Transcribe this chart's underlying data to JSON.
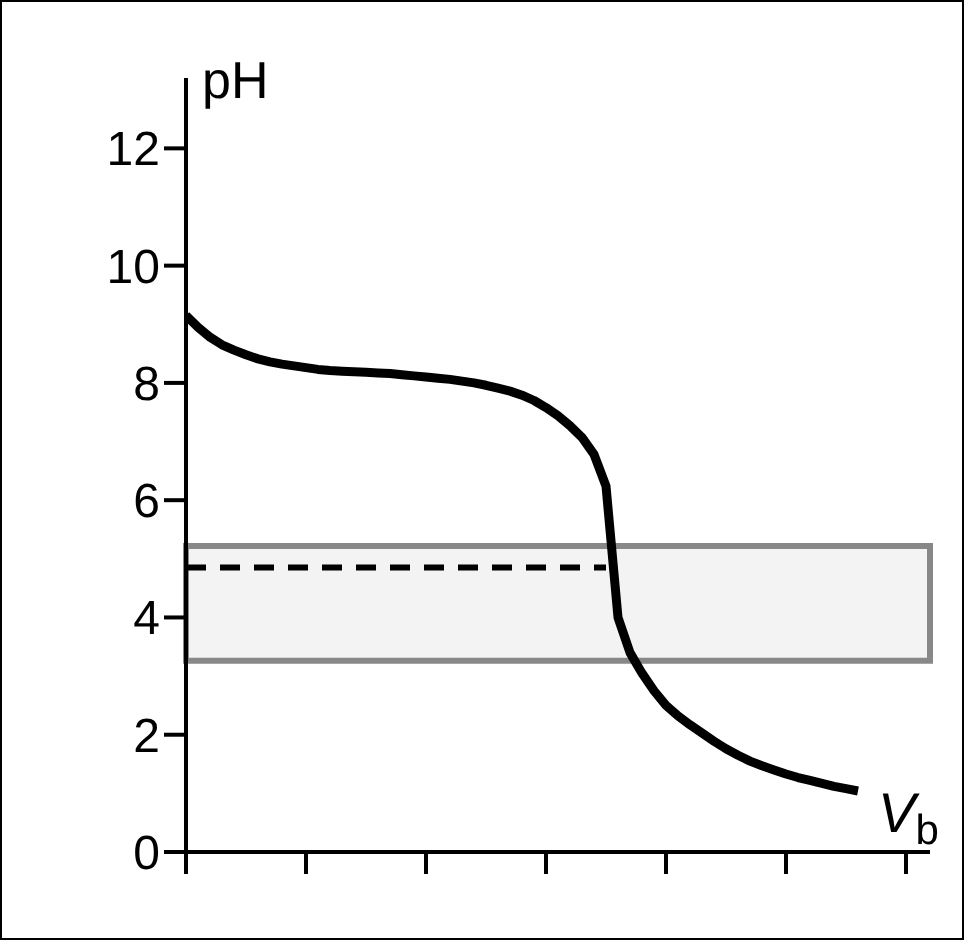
{
  "chart_data": {
    "type": "line",
    "xlabel": "V$_{b}$",
    "ylabel": "pH",
    "categories": [
      null,
      null,
      null,
      null,
      null,
      null,
      null,
      null,
      null,
      null,
      null,
      null,
      null,
      null,
      null,
      null,
      null,
      null,
      null,
      null,
      null,
      null,
      null,
      null,
      null,
      null,
      null,
      null,
      null,
      null,
      null,
      null,
      null,
      null,
      null,
      null,
      null,
      null,
      null,
      null,
      null,
      null,
      null,
      null,
      null,
      null,
      null,
      null,
      null,
      null,
      null,
      null,
      null,
      null,
      null,
      null,
      null,
      null,
      null,
      null,
      null,
      null,
      null
    ],
    "ylim": [
      0,
      13.2
    ],
    "yticks": [
      {
        "value": 0,
        "label": "0"
      },
      2,
      4,
      6,
      8,
      10,
      12
    ],
    "series": [
      {
        "color": "#000000",
        "line_style": "solid",
        "values": [
          9.15,
          8.95,
          8.78,
          8.65,
          8.56,
          8.48,
          8.41,
          8.36,
          8.32,
          8.29,
          8.26,
          8.23,
          8.21,
          8.2,
          8.19,
          8.18,
          8.17,
          8.16,
          8.14,
          8.12,
          8.1,
          8.08,
          8.06,
          8.03,
          8.0,
          7.96,
          7.91,
          7.86,
          7.79,
          7.7,
          7.58,
          7.44,
          7.27,
          7.07,
          6.78,
          6.24,
          4.0,
          3.4,
          3.05,
          2.75,
          2.5,
          2.32,
          2.17,
          2.03,
          1.89,
          1.76,
          1.65,
          1.55,
          1.47,
          1.4,
          1.33,
          1.27,
          1.22,
          1.17,
          1.12,
          1.08,
          1.04,
          null,
          null,
          null,
          null,
          null,
          null
        ]
      },
      {
        "color": "#000000",
        "line_style": "dashed",
        "values": [
          4.85,
          4.85,
          4.85,
          4.85,
          4.85,
          4.85,
          4.85,
          4.85,
          4.85,
          4.85,
          4.85,
          4.85,
          4.85,
          4.85,
          4.85,
          4.85,
          4.85,
          4.85,
          4.85,
          4.85,
          4.85,
          4.85,
          4.85,
          4.85,
          4.85,
          4.85,
          4.85,
          4.85,
          4.85,
          4.85,
          4.85,
          4.85,
          4.85,
          4.85,
          4.85,
          4.85,
          null,
          null,
          null,
          null,
          null,
          null,
          null,
          null,
          null,
          null,
          null,
          null,
          null,
          null,
          null,
          null,
          null,
          null,
          null,
          null,
          null,
          null,
          null,
          null,
          null,
          null,
          null
        ]
      }
    ],
    "bands": [
      {
        "axis": "y",
        "from": 3.26,
        "to": 5.22,
        "color": "#888888"
      }
    ],
    "marker": "none"
  }
}
